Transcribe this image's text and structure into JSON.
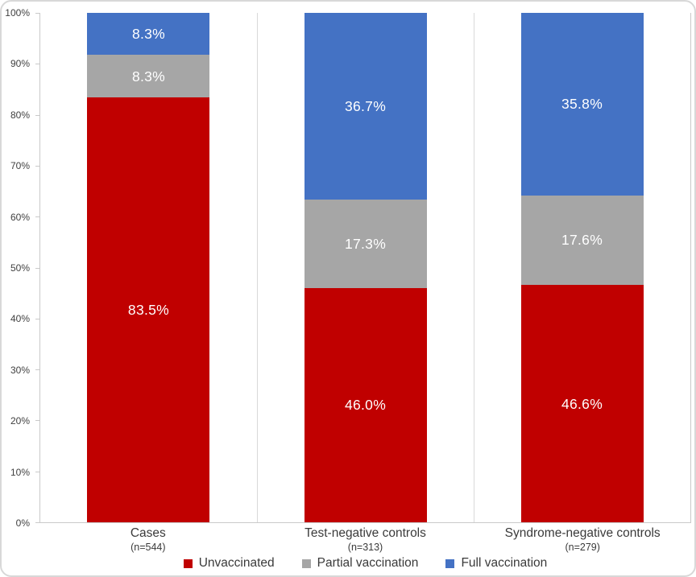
{
  "chart_data": {
    "type": "bar",
    "stacked": true,
    "orientation": "vertical",
    "title": "",
    "xlabel": "",
    "ylabel": "",
    "categories": [
      "Cases",
      "Test-negative controls",
      "Syndrome-negative controls"
    ],
    "category_counts": [
      "(n=544)",
      "(n=313)",
      "(n=279)"
    ],
    "series": [
      {
        "name": "Unvaccinated",
        "color": "#C00000",
        "values": [
          83.5,
          46.0,
          46.6
        ],
        "labels": [
          "83.5%",
          "46.0%",
          "46.6%"
        ]
      },
      {
        "name": "Partial vaccination",
        "color": "#A6A6A6",
        "values": [
          8.3,
          17.3,
          17.6
        ],
        "labels": [
          "8.3%",
          "17.3%",
          "17.6%"
        ]
      },
      {
        "name": "Full vaccination",
        "color": "#4472C4",
        "values": [
          8.3,
          36.7,
          35.8
        ],
        "labels": [
          "8.3%",
          "36.7%",
          "35.8%"
        ]
      }
    ],
    "y_ticks": [
      "0%",
      "10%",
      "20%",
      "30%",
      "40%",
      "50%",
      "60%",
      "70%",
      "80%",
      "90%",
      "100%"
    ],
    "ylim": [
      0,
      100
    ],
    "grid": "vertical category separators only",
    "legend_position": "bottom",
    "data_label_color": "#FFFFFF",
    "axis_line_color": "#C9C9C9",
    "separator_color": "#D9D9D9"
  }
}
